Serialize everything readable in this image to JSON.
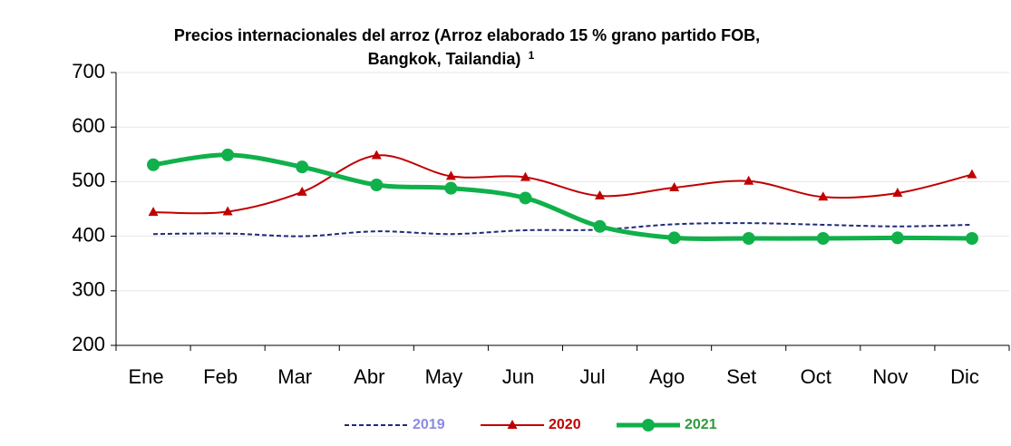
{
  "chart_data": {
    "type": "line",
    "title": [
      "Precios internacionales del arroz  (Arroz elaborado 15 % grano partido FOB,",
      "Bangkok, Tailandia)"
    ],
    "title_note": "1",
    "categories": [
      "Ene",
      "Feb",
      "Mar",
      "Abr",
      "May",
      "Jun",
      "Jul",
      "Ago",
      "Set",
      "Oct",
      "Nov",
      "Dic"
    ],
    "series": [
      {
        "name": "2019",
        "color": "#1f2a7a",
        "legend_color": "#8a8ae6",
        "dash": true,
        "marker": "none",
        "width": 2,
        "values": [
          404,
          405,
          400,
          409,
          404,
          411,
          412,
          422,
          424,
          421,
          418,
          421
        ]
      },
      {
        "name": "2020",
        "color": "#c00000",
        "legend_color": "#c00000",
        "dash": false,
        "marker": "triangle",
        "width": 2,
        "values": [
          444,
          445,
          481,
          548,
          510,
          508,
          474,
          489,
          501,
          472,
          479,
          513
        ]
      },
      {
        "name": "2021",
        "color": "#10b04a",
        "legend_color": "#2e9a3a",
        "dash": false,
        "marker": "circle",
        "width": 5,
        "values": [
          531,
          549,
          527,
          494,
          488,
          470,
          418,
          397,
          396,
          396,
          397,
          396
        ]
      }
    ],
    "ylim": [
      200,
      700
    ],
    "yticks": [
      200,
      300,
      400,
      500,
      600,
      700
    ],
    "grid": true
  }
}
